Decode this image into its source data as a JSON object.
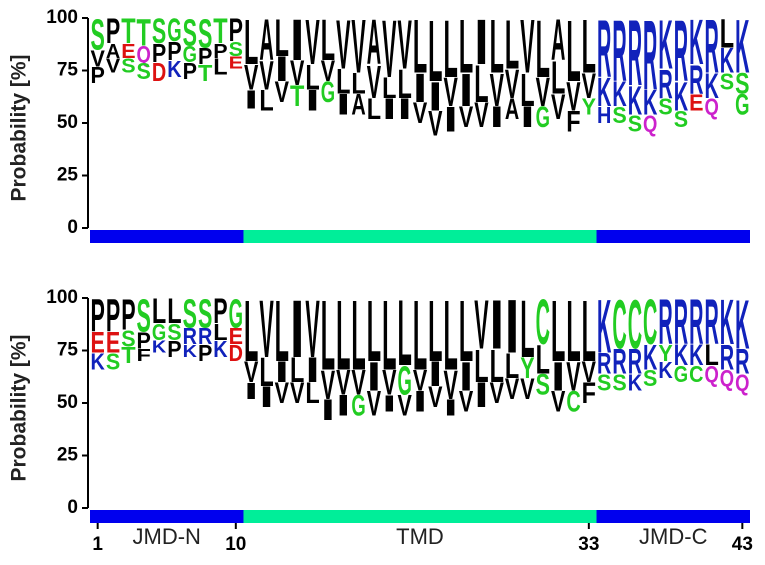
{
  "chart_data": [
    {
      "type": "sequence-logo",
      "y_label": "Probability [%]",
      "ylim": [
        0,
        100
      ],
      "yticks": [
        0,
        25,
        50,
        75,
        100
      ],
      "regions": [
        {
          "start": 1,
          "end": 10,
          "color": "#0000ee"
        },
        {
          "start": 11,
          "end": 33,
          "color": "#00ee99"
        },
        {
          "start": 34,
          "end": 43,
          "color": "#0000ee"
        }
      ],
      "stacks": [
        [
          [
            "S",
            15
          ],
          [
            "V",
            8
          ],
          [
            "P",
            8
          ]
        ],
        [
          [
            "P",
            12
          ],
          [
            "A",
            7
          ],
          [
            "V",
            7
          ]
        ],
        [
          [
            "T",
            12
          ],
          [
            "E",
            7
          ],
          [
            "S",
            7
          ]
        ],
        [
          [
            "T",
            13
          ],
          [
            "Q",
            8
          ],
          [
            "S",
            8
          ]
        ],
        [
          [
            "S",
            12
          ],
          [
            "P",
            9
          ],
          [
            "D",
            9
          ]
        ],
        [
          [
            "G",
            11
          ],
          [
            "P",
            9
          ],
          [
            "K",
            8
          ]
        ],
        [
          [
            "S",
            13
          ],
          [
            "G",
            8
          ],
          [
            "P",
            8
          ]
        ],
        [
          [
            "S",
            14
          ],
          [
            "P",
            8
          ],
          [
            "T",
            8
          ]
        ],
        [
          [
            "T",
            12
          ],
          [
            "P",
            7
          ],
          [
            "L",
            8
          ]
        ],
        [
          [
            "P",
            11
          ],
          [
            "S",
            7
          ],
          [
            "E",
            6
          ]
        ],
        [
          [
            "L",
            22
          ],
          [
            "V",
            12
          ],
          [
            "I",
            9
          ]
        ],
        [
          [
            "A",
            20
          ],
          [
            "V",
            14
          ],
          [
            "L",
            10
          ]
        ],
        [
          [
            "L",
            18
          ],
          [
            "I",
            12
          ],
          [
            "V",
            10
          ]
        ],
        [
          [
            "I",
            20
          ],
          [
            "V",
            12
          ],
          [
            "T",
            10
          ]
        ],
        [
          [
            "V",
            22
          ],
          [
            "L",
            12
          ],
          [
            "I",
            10
          ]
        ],
        [
          [
            "L",
            20
          ],
          [
            "V",
            10
          ],
          [
            "G",
            10
          ]
        ],
        [
          [
            "V",
            24
          ],
          [
            "L",
            12
          ],
          [
            "I",
            10
          ]
        ],
        [
          [
            "V",
            26
          ],
          [
            "L",
            10
          ],
          [
            "A",
            10
          ]
        ],
        [
          [
            "A",
            22
          ],
          [
            "V",
            16
          ],
          [
            "L",
            10
          ]
        ],
        [
          [
            "V",
            28
          ],
          [
            "L",
            10
          ],
          [
            "I",
            10
          ]
        ],
        [
          [
            "V",
            24
          ],
          [
            "L",
            14
          ],
          [
            "I",
            10
          ]
        ],
        [
          [
            "L",
            26
          ],
          [
            "I",
            14
          ],
          [
            "V",
            10
          ]
        ],
        [
          [
            "L",
            30
          ],
          [
            "I",
            14
          ],
          [
            "V",
            12
          ]
        ],
        [
          [
            "L",
            28
          ],
          [
            "V",
            14
          ],
          [
            "I",
            12
          ]
        ],
        [
          [
            "L",
            26
          ],
          [
            "I",
            16
          ],
          [
            "V",
            10
          ]
        ],
        [
          [
            "I",
            22
          ],
          [
            "L",
            18
          ],
          [
            "V",
            12
          ]
        ],
        [
          [
            "L",
            26
          ],
          [
            "V",
            16
          ],
          [
            "I",
            10
          ]
        ],
        [
          [
            "L",
            24
          ],
          [
            "V",
            14
          ],
          [
            "A",
            10
          ]
        ],
        [
          [
            "V",
            26
          ],
          [
            "L",
            16
          ],
          [
            "I",
            10
          ]
        ],
        [
          [
            "L",
            28
          ],
          [
            "V",
            14
          ],
          [
            "G",
            10
          ]
        ],
        [
          [
            "A",
            20
          ],
          [
            "L",
            16
          ],
          [
            "V",
            12
          ]
        ],
        [
          [
            "L",
            30
          ],
          [
            "V",
            14
          ],
          [
            "F",
            10
          ]
        ],
        [
          [
            "L",
            26
          ],
          [
            "V",
            12
          ],
          [
            "Y",
            8
          ]
        ],
        [
          [
            "R",
            28
          ],
          [
            "K",
            14
          ],
          [
            "H",
            8
          ]
        ],
        [
          [
            "R",
            30
          ],
          [
            "K",
            12
          ],
          [
            "S",
            8
          ]
        ],
        [
          [
            "R",
            32
          ],
          [
            "K",
            14
          ],
          [
            "S",
            8
          ]
        ],
        [
          [
            "R",
            34
          ],
          [
            "K",
            12
          ],
          [
            "Q",
            8
          ]
        ],
        [
          [
            "K",
            24
          ],
          [
            "R",
            14
          ],
          [
            "S",
            8
          ]
        ],
        [
          [
            "R",
            30
          ],
          [
            "K",
            14
          ],
          [
            "S",
            8
          ]
        ],
        [
          [
            "K",
            22
          ],
          [
            "R",
            14
          ],
          [
            "E",
            8
          ]
        ],
        [
          [
            "R",
            26
          ],
          [
            "K",
            12
          ],
          [
            "Q",
            8
          ]
        ],
        [
          [
            "L",
            14
          ],
          [
            "K",
            12
          ],
          [
            "S",
            8
          ]
        ],
        [
          [
            "K",
            26
          ],
          [
            "S",
            10
          ],
          [
            "G",
            10
          ]
        ]
      ]
    },
    {
      "type": "sequence-logo",
      "y_label": "Probability [%]",
      "ylim": [
        0,
        100
      ],
      "yticks": [
        0,
        25,
        50,
        75,
        100
      ],
      "xticks": [
        1,
        10,
        33,
        43
      ],
      "regions": [
        {
          "name": "JMD-N",
          "start": 1,
          "end": 10,
          "color": "#0000ee"
        },
        {
          "name": "TMD",
          "start": 11,
          "end": 33,
          "color": "#00ee99"
        },
        {
          "name": "JMD-C",
          "start": 34,
          "end": 43,
          "color": "#0000ee"
        }
      ],
      "stacks": [
        [
          [
            "P",
            16
          ],
          [
            "E",
            10
          ],
          [
            "K",
            8
          ]
        ],
        [
          [
            "P",
            16
          ],
          [
            "E",
            10
          ],
          [
            "S",
            8
          ]
        ],
        [
          [
            "P",
            15
          ],
          [
            "S",
            8
          ],
          [
            "T",
            8
          ]
        ],
        [
          [
            "S",
            16
          ],
          [
            "P",
            8
          ],
          [
            "F",
            6
          ]
        ],
        [
          [
            "L",
            12
          ],
          [
            "G",
            8
          ],
          [
            "K",
            6
          ]
        ],
        [
          [
            "L",
            12
          ],
          [
            "S",
            8
          ],
          [
            "P",
            8
          ]
        ],
        [
          [
            "S",
            14
          ],
          [
            "R",
            8
          ],
          [
            "K",
            6
          ]
        ],
        [
          [
            "S",
            14
          ],
          [
            "R",
            8
          ],
          [
            "P",
            8
          ]
        ],
        [
          [
            "P",
            12
          ],
          [
            "L",
            8
          ],
          [
            "K",
            8
          ]
        ],
        [
          [
            "G",
            14
          ],
          [
            "E",
            8
          ],
          [
            "D",
            8
          ]
        ],
        [
          [
            "L",
            30
          ],
          [
            "V",
            10
          ],
          [
            "I",
            8
          ]
        ],
        [
          [
            "V",
            28
          ],
          [
            "L",
            14
          ],
          [
            "I",
            10
          ]
        ],
        [
          [
            "L",
            30
          ],
          [
            "I",
            10
          ],
          [
            "V",
            10
          ]
        ],
        [
          [
            "I",
            28
          ],
          [
            "L",
            12
          ],
          [
            "V",
            10
          ]
        ],
        [
          [
            "V",
            28
          ],
          [
            "I",
            12
          ],
          [
            "L",
            10
          ]
        ],
        [
          [
            "L",
            34
          ],
          [
            "V",
            14
          ],
          [
            "I",
            10
          ]
        ],
        [
          [
            "L",
            34
          ],
          [
            "V",
            12
          ],
          [
            "I",
            10
          ]
        ],
        [
          [
            "L",
            34
          ],
          [
            "V",
            12
          ],
          [
            "G",
            10
          ]
        ],
        [
          [
            "L",
            30
          ],
          [
            "I",
            14
          ],
          [
            "V",
            12
          ]
        ],
        [
          [
            "L",
            34
          ],
          [
            "V",
            12
          ],
          [
            "I",
            8
          ]
        ],
        [
          [
            "L",
            32
          ],
          [
            "G",
            14
          ],
          [
            "V",
            10
          ]
        ],
        [
          [
            "L",
            34
          ],
          [
            "V",
            10
          ],
          [
            "I",
            10
          ]
        ],
        [
          [
            "L",
            30
          ],
          [
            "I",
            12
          ],
          [
            "V",
            10
          ]
        ],
        [
          [
            "L",
            34
          ],
          [
            "V",
            14
          ],
          [
            "I",
            8
          ]
        ],
        [
          [
            "L",
            30
          ],
          [
            "I",
            14
          ],
          [
            "V",
            10
          ]
        ],
        [
          [
            "V",
            24
          ],
          [
            "L",
            16
          ],
          [
            "I",
            12
          ]
        ],
        [
          [
            "I",
            24
          ],
          [
            "L",
            16
          ],
          [
            "V",
            10
          ]
        ],
        [
          [
            "I",
            26
          ],
          [
            "L",
            12
          ],
          [
            "V",
            10
          ]
        ],
        [
          [
            "L",
            28
          ],
          [
            "Y",
            10
          ],
          [
            "V",
            10
          ]
        ],
        [
          [
            "C",
            22
          ],
          [
            "L",
            14
          ],
          [
            "S",
            10
          ]
        ],
        [
          [
            "L",
            30
          ],
          [
            "I",
            14
          ],
          [
            "V",
            10
          ]
        ],
        [
          [
            "L",
            30
          ],
          [
            "V",
            14
          ],
          [
            "C",
            10
          ]
        ],
        [
          [
            "L",
            30
          ],
          [
            "V",
            10
          ],
          [
            "F",
            10
          ]
        ],
        [
          [
            "K",
            26
          ],
          [
            "R",
            10
          ],
          [
            "S",
            8
          ]
        ],
        [
          [
            "C",
            24
          ],
          [
            "R",
            12
          ],
          [
            "S",
            8
          ]
        ],
        [
          [
            "C",
            24
          ],
          [
            "R",
            12
          ],
          [
            "K",
            8
          ]
        ],
        [
          [
            "C",
            22
          ],
          [
            "K",
            12
          ],
          [
            "S",
            8
          ]
        ],
        [
          [
            "R",
            22
          ],
          [
            "Y",
            8
          ],
          [
            "K",
            8
          ]
        ],
        [
          [
            "R",
            22
          ],
          [
            "K",
            10
          ],
          [
            "G",
            8
          ]
        ],
        [
          [
            "R",
            22
          ],
          [
            "K",
            10
          ],
          [
            "C",
            8
          ]
        ],
        [
          [
            "R",
            22
          ],
          [
            "L",
            10
          ],
          [
            "Q",
            8
          ]
        ],
        [
          [
            "K",
            22
          ],
          [
            "R",
            12
          ],
          [
            "Q",
            8
          ]
        ],
        [
          [
            "K",
            24
          ],
          [
            "R",
            12
          ],
          [
            "Q",
            8
          ]
        ]
      ]
    }
  ],
  "letter_colors": {
    "A": "#000000",
    "V": "#000000",
    "L": "#000000",
    "I": "#000000",
    "M": "#000000",
    "F": "#000000",
    "W": "#000000",
    "P": "#000000",
    "S": "#22cc22",
    "T": "#22cc22",
    "G": "#22cc22",
    "Y": "#22cc22",
    "C": "#22cc22",
    "Q": "#cc22cc",
    "N": "#cc22cc",
    "D": "#dd1111",
    "E": "#dd1111",
    "K": "#1122bb",
    "R": "#1122bb",
    "H": "#1122bb"
  }
}
